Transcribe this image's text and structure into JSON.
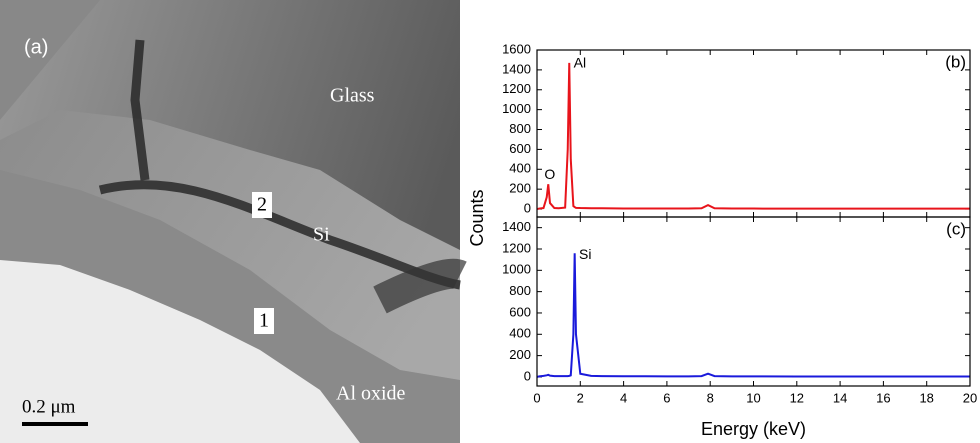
{
  "image": {
    "panel_label": "(a)",
    "regions": [
      "Glass",
      "Si",
      "Al oxide"
    ],
    "markers": [
      "2",
      "1"
    ],
    "scale_bar": "0.2 μm"
  },
  "chart_data": [
    {
      "type": "line",
      "panel_label": "(b)",
      "ylabel": "Counts",
      "x": [
        0,
        0.1,
        0.3,
        0.45,
        0.52,
        0.6,
        0.8,
        1.0,
        1.3,
        1.42,
        1.49,
        1.56,
        1.68,
        1.74,
        1.8,
        2.0,
        2.5,
        3,
        4,
        5,
        6,
        7,
        7.6,
        7.9,
        8.2,
        9,
        10,
        12,
        14,
        16,
        18,
        20
      ],
      "series": [
        {
          "color": "#e8141b",
          "values": [
            0,
            5,
            10,
            120,
            250,
            60,
            10,
            8,
            15,
            600,
            1470,
            500,
            30,
            20,
            12,
            10,
            8,
            8,
            6,
            6,
            5,
            5,
            8,
            40,
            8,
            5,
            5,
            4,
            4,
            4,
            4,
            4
          ]
        }
      ],
      "annotations": [
        {
          "text": "Al",
          "x": 1.6,
          "y": 1480
        },
        {
          "text": "O",
          "x": 0.25,
          "y": 360
        }
      ],
      "xlim": [
        0,
        20
      ],
      "xticks": [
        0,
        2,
        4,
        6,
        8,
        10,
        12,
        14,
        16,
        18,
        20
      ],
      "ylim": [
        -80,
        1600
      ],
      "yticks": [
        0,
        200,
        400,
        600,
        800,
        1000,
        1200,
        1400,
        1600
      ]
    },
    {
      "type": "line",
      "panel_label": "(c)",
      "xlabel": "Energy (keV)",
      "x": [
        0,
        0.1,
        0.3,
        0.45,
        0.52,
        0.6,
        0.8,
        1.0,
        1.3,
        1.42,
        1.49,
        1.56,
        1.68,
        1.74,
        1.8,
        2.0,
        2.5,
        3,
        4,
        5,
        6,
        7,
        7.6,
        7.9,
        8.2,
        9,
        10,
        12,
        14,
        16,
        18,
        20
      ],
      "series": [
        {
          "color": "#1a1adb",
          "values": [
            0,
            5,
            10,
            15,
            20,
            12,
            8,
            8,
            8,
            8,
            10,
            15,
            400,
            1160,
            400,
            30,
            10,
            8,
            6,
            6,
            5,
            5,
            8,
            30,
            8,
            5,
            5,
            4,
            4,
            4,
            4,
            4
          ]
        }
      ],
      "annotations": [
        {
          "text": "Si",
          "x": 1.85,
          "y": 1160
        }
      ],
      "xlim": [
        0,
        20
      ],
      "xticks": [
        0,
        2,
        4,
        6,
        8,
        10,
        12,
        14,
        16,
        18,
        20
      ],
      "ylim": [
        -85,
        1500
      ],
      "yticks": [
        0,
        200,
        400,
        600,
        800,
        1000,
        1200,
        1400
      ]
    }
  ]
}
